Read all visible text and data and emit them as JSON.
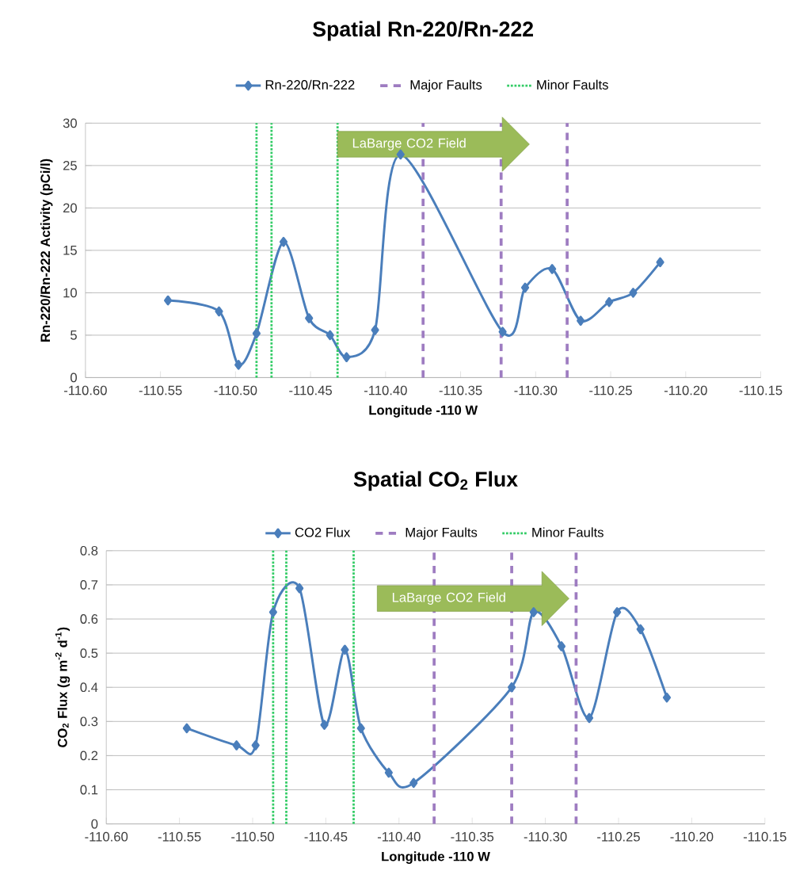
{
  "chart_data": [
    {
      "type": "line",
      "title": "Spatial Rn-220/Rn-222",
      "xlabel": "Longitude -110 W",
      "ylabel": "Rn-220/Rn-222 Activity (pCi/l)",
      "x": [
        -110.545,
        -110.511,
        -110.498,
        -110.486,
        -110.468,
        -110.451,
        -110.437,
        -110.426,
        -110.407,
        -110.39,
        -110.322,
        -110.307,
        -110.289,
        -110.27,
        -110.251,
        -110.235,
        -110.217
      ],
      "series": [
        {
          "name": "Rn-220/Rn-222",
          "color": "#4a7ebb",
          "values": [
            9.1,
            7.8,
            1.5,
            5.2,
            16.0,
            7.0,
            5.0,
            2.4,
            5.6,
            26.3,
            5.4,
            10.6,
            12.8,
            6.7,
            8.9,
            10.0,
            13.6
          ]
        }
      ],
      "xlim": [
        -110.6,
        -110.15
      ],
      "xticks": [
        {
          "value": -110.6,
          "label": "-110.60"
        },
        {
          "value": -110.55,
          "label": "-110.55"
        },
        {
          "value": -110.5,
          "label": "-110.50"
        },
        {
          "value": -110.45,
          "label": "-110.45"
        },
        {
          "value": -110.4,
          "label": "-110.40"
        },
        {
          "value": -110.35,
          "label": "-110.35"
        },
        {
          "value": -110.3,
          "label": "-110.30"
        },
        {
          "value": -110.25,
          "label": "-110.25"
        },
        {
          "value": -110.2,
          "label": "-110.20"
        },
        {
          "value": -110.15,
          "label": "-110.15"
        }
      ],
      "ylim": [
        0,
        30
      ],
      "yticks": [
        0,
        5,
        10,
        15,
        20,
        25,
        30
      ],
      "ref_lines": [
        {
          "axis": "x",
          "value": -110.375,
          "label": "Major Faults",
          "color": "#9e7cc1",
          "line_style": "dashed"
        },
        {
          "axis": "x",
          "value": -110.323,
          "color": "#9e7cc1",
          "line_style": "dashed"
        },
        {
          "axis": "x",
          "value": -110.279,
          "color": "#9e7cc1",
          "line_style": "dashed"
        },
        {
          "axis": "x",
          "value": -110.486,
          "label": "Minor Faults",
          "color": "#33cc66",
          "line_style": "dotted"
        },
        {
          "axis": "x",
          "value": -110.476,
          "color": "#33cc66",
          "line_style": "dotted"
        },
        {
          "axis": "x",
          "value": -110.432,
          "color": "#33cc66",
          "line_style": "dotted"
        }
      ],
      "annotations": [
        "LaBarge CO2 Field"
      ],
      "grid": "y",
      "legend": "top",
      "marker": "diamond",
      "line_style": "solid"
    },
    {
      "type": "line",
      "title": "Spatial CO$_{2}$ Flux",
      "xlabel": "Longitude -110 W",
      "ylabel": "CO$_{2}$ Flux (g m$^{-2}$ d$^{-1}$)",
      "x": [
        -110.545,
        -110.511,
        -110.498,
        -110.486,
        -110.468,
        -110.451,
        -110.437,
        -110.426,
        -110.407,
        -110.39,
        -110.323,
        -110.308,
        -110.289,
        -110.27,
        -110.251,
        -110.235,
        -110.217
      ],
      "series": [
        {
          "name": "CO2 Flux",
          "color": "#4a7ebb",
          "values": [
            0.28,
            0.23,
            0.23,
            0.62,
            0.69,
            0.29,
            0.51,
            0.28,
            0.15,
            0.12,
            0.4,
            0.62,
            0.52,
            0.31,
            0.62,
            0.57,
            0.37
          ]
        }
      ],
      "xlim": [
        -110.6,
        -110.15
      ],
      "xticks": [
        {
          "value": -110.6,
          "label": "-110.60"
        },
        {
          "value": -110.55,
          "label": "-110.55"
        },
        {
          "value": -110.5,
          "label": "-110.50"
        },
        {
          "value": -110.45,
          "label": "-110.45"
        },
        {
          "value": -110.4,
          "label": "-110.40"
        },
        {
          "value": -110.35,
          "label": "-110.35"
        },
        {
          "value": -110.3,
          "label": "-110.30"
        },
        {
          "value": -110.25,
          "label": "-110.25"
        },
        {
          "value": -110.2,
          "label": "-110.20"
        },
        {
          "value": -110.15,
          "label": "-110.15"
        }
      ],
      "ylim": [
        0,
        0.8
      ],
      "yticks": [
        0,
        0.1,
        0.2,
        0.3,
        0.4,
        0.5,
        0.6,
        0.7,
        0.8
      ],
      "ref_lines": [
        {
          "axis": "x",
          "value": -110.376,
          "label": "Major Faults",
          "color": "#9e7cc1",
          "line_style": "dashed"
        },
        {
          "axis": "x",
          "value": -110.323,
          "color": "#9e7cc1",
          "line_style": "dashed"
        },
        {
          "axis": "x",
          "value": -110.279,
          "color": "#9e7cc1",
          "line_style": "dashed"
        },
        {
          "axis": "x",
          "value": -110.486,
          "label": "Minor Faults",
          "color": "#33cc66",
          "line_style": "dotted"
        },
        {
          "axis": "x",
          "value": -110.477,
          "color": "#33cc66",
          "line_style": "dotted"
        },
        {
          "axis": "x",
          "value": -110.431,
          "color": "#33cc66",
          "line_style": "dotted"
        }
      ],
      "annotations": [
        "LaBarge CO2 Field"
      ],
      "grid": "y",
      "legend": "top",
      "marker": "diamond",
      "line_style": "solid"
    }
  ]
}
